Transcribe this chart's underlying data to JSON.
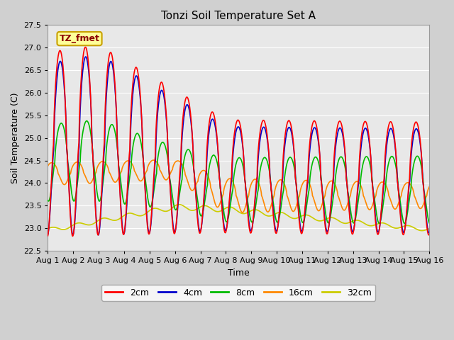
{
  "title": "Tonzi Soil Temperature Set A",
  "xlabel": "Time",
  "ylabel": "Soil Temperature (C)",
  "xlim": [
    0,
    15
  ],
  "ylim": [
    22.5,
    27.5
  ],
  "yticks": [
    22.5,
    23.0,
    23.5,
    24.0,
    24.5,
    25.0,
    25.5,
    26.0,
    26.5,
    27.0,
    27.5
  ],
  "xtick_labels": [
    "Aug 1",
    "Aug 2",
    "Aug 3",
    "Aug 4",
    "Aug 5",
    "Aug 6",
    "Aug 7",
    "Aug 8",
    "Aug 9",
    "Aug 10",
    "Aug 11",
    "Aug 12",
    "Aug 13",
    "Aug 14",
    "Aug 15",
    "Aug 16"
  ],
  "annotation_text": "TZ_fmet",
  "annotation_color": "#8B0000",
  "annotation_bg": "#FFFF99",
  "annotation_border": "#C8A000",
  "colors": {
    "2cm": "#FF0000",
    "4cm": "#0000CC",
    "8cm": "#00BB00",
    "16cm": "#FF8800",
    "32cm": "#CCCC00"
  },
  "linewidth": 1.2,
  "fig_facecolor": "#D0D0D0",
  "ax_facecolor": "#E8E8E8",
  "grid_color": "#FFFFFF",
  "legend_labels": [
    "2cm",
    "4cm",
    "8cm",
    "16cm",
    "32cm"
  ]
}
